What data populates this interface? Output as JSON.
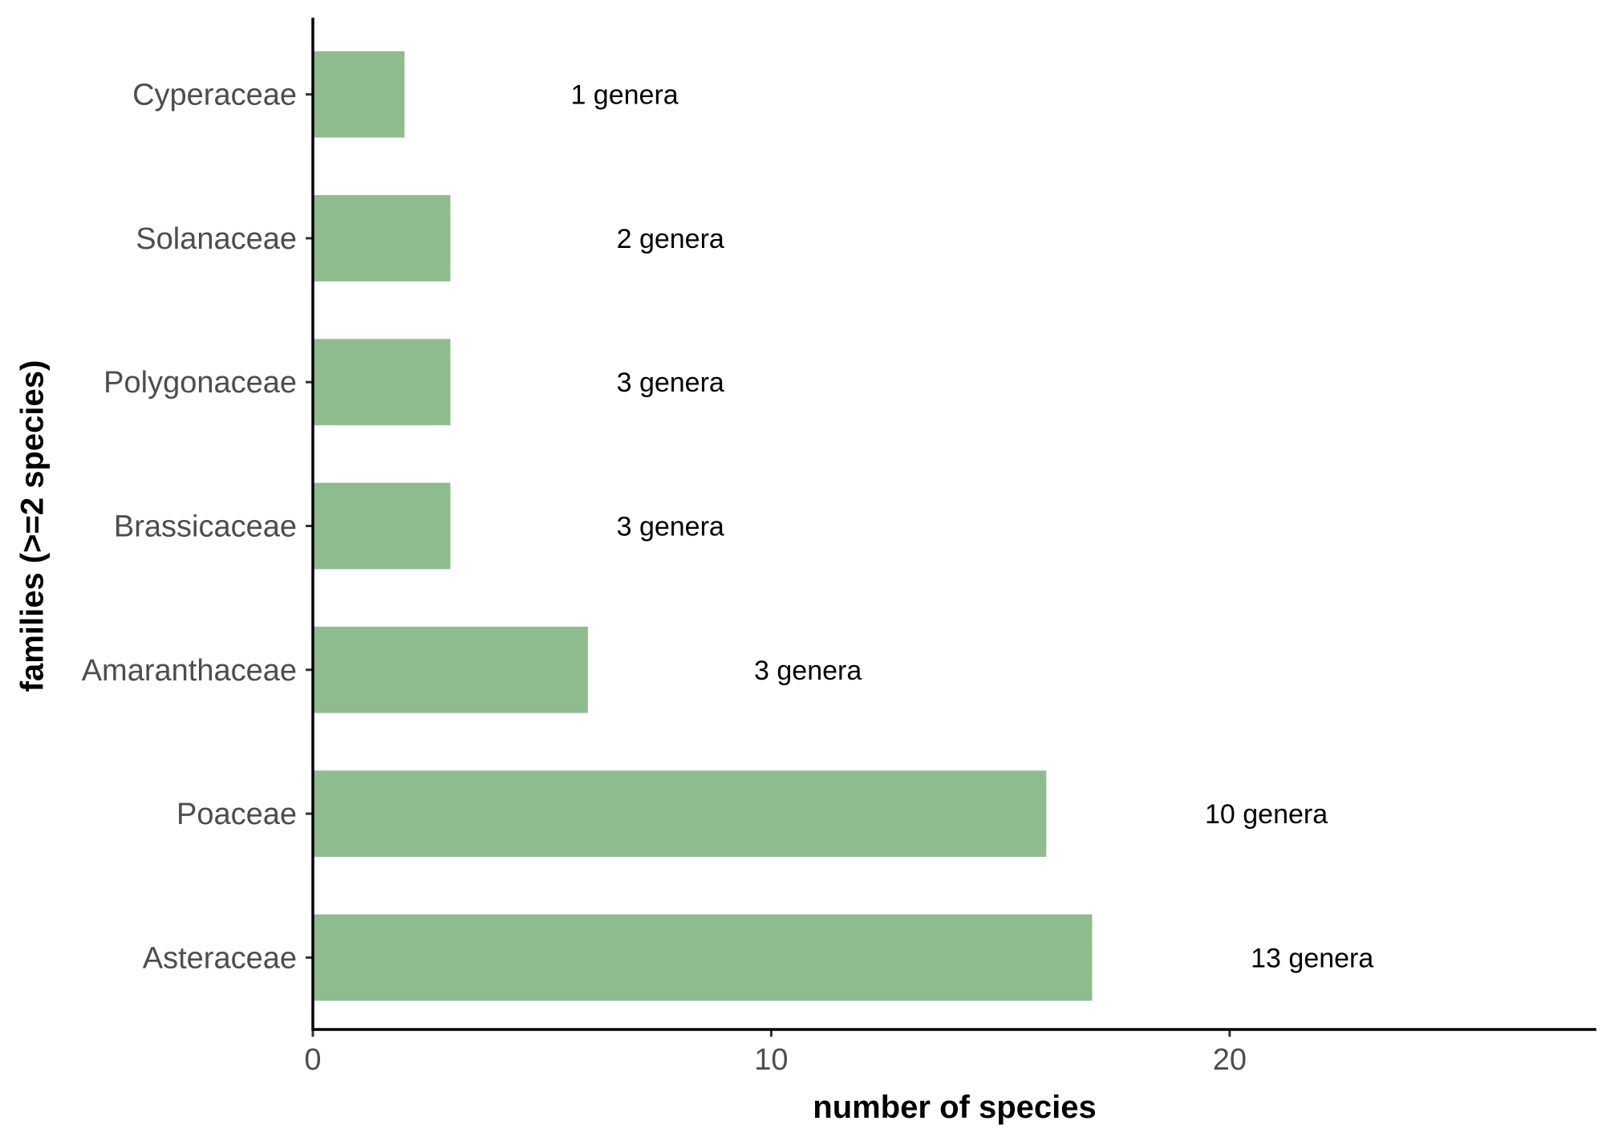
{
  "chart_data": {
    "type": "bar",
    "orientation": "horizontal",
    "categories": [
      "Asteraceae",
      "Poaceae",
      "Amaranthaceae",
      "Brassicaceae",
      "Polygonaceae",
      "Solanaceae",
      "Cyperaceae"
    ],
    "values": [
      17,
      16,
      6,
      3,
      3,
      3,
      2
    ],
    "bar_labels": [
      "13 genera",
      "10 genera",
      "3 genera",
      "3 genera",
      "3 genera",
      "2 genera",
      "1 genera"
    ],
    "xlabel": "number of species",
    "ylabel": "families (>=2 species)",
    "xlim": [
      0,
      28
    ],
    "xticks": [
      0,
      10,
      20
    ],
    "xtick_labels": [
      "0",
      "10",
      "20"
    ],
    "grid": false,
    "bar_color": "#8fbc8f"
  }
}
